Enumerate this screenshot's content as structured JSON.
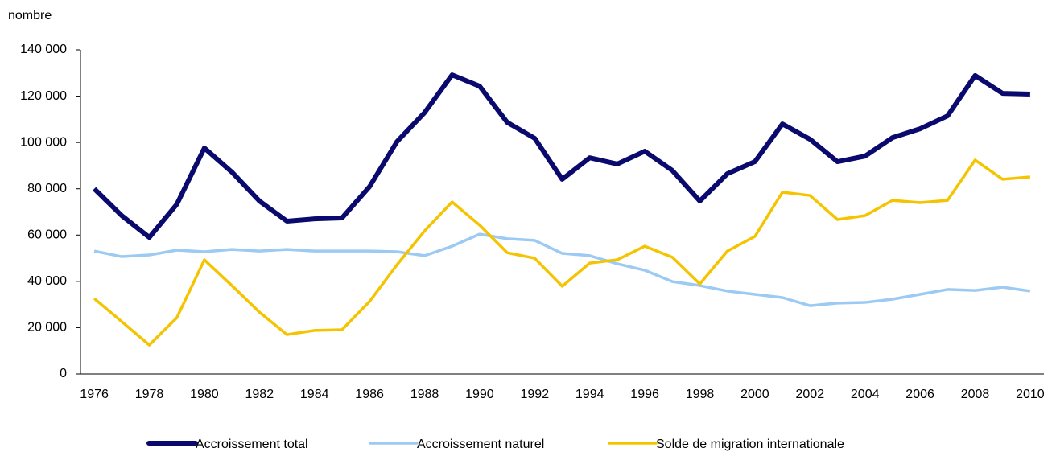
{
  "chart_data": {
    "type": "line",
    "y_label": "nombre",
    "categories": [
      "1976",
      null,
      "1978",
      null,
      "1980",
      null,
      "1982",
      null,
      "1984",
      null,
      "1986",
      null,
      "1988",
      null,
      "1990",
      null,
      "1992",
      null,
      "1994",
      null,
      "1996",
      null,
      "1998",
      null,
      "2000",
      null,
      "2002",
      null,
      "2004",
      null,
      "2006",
      null,
      "2008",
      null,
      "2010"
    ],
    "ylim": [
      0,
      140000
    ],
    "yticks": [
      0,
      {
        "value": 20000,
        "label": "20 000"
      },
      {
        "value": 40000,
        "label": "40 000"
      },
      {
        "value": 60000,
        "label": "60 000"
      },
      {
        "value": 80000,
        "label": "80 000"
      },
      {
        "value": 100000,
        "label": "100 000"
      },
      {
        "value": 120000,
        "label": "120 000"
      },
      {
        "value": 140000,
        "label": "140 000"
      }
    ],
    "series": [
      {
        "name": "Accroissement total",
        "color": "#0a0a6e",
        "width": 6,
        "values": [
          80000,
          68400,
          59000,
          73300,
          97600,
          87200,
          74700,
          66000,
          67000,
          67400,
          80900,
          100400,
          112900,
          129200,
          124300,
          108700,
          101800,
          84100,
          93400,
          90700,
          96200,
          87900,
          74700,
          86500,
          91700,
          108000,
          101400,
          91700,
          94100,
          102100,
          105900,
          111500,
          128900,
          121200,
          120900
        ]
      },
      {
        "name": "Accroissement naturel",
        "color": "#9ccaf2",
        "width": 3.5,
        "values": [
          53100,
          50700,
          51400,
          53500,
          52800,
          53800,
          53100,
          53800,
          53100,
          53100,
          53100,
          52800,
          51100,
          55200,
          60400,
          58400,
          57700,
          52100,
          51100,
          47600,
          44800,
          39900,
          38200,
          35800,
          34400,
          33000,
          29500,
          30600,
          30900,
          32300,
          34400,
          36500,
          36100,
          37500,
          35800
        ]
      },
      {
        "name": "Solde de migration internationale",
        "color": "#f5c400",
        "width": 3.5,
        "values": [
          32600,
          22600,
          12500,
          24300,
          49300,
          38200,
          26700,
          17000,
          18800,
          19100,
          31300,
          47200,
          61800,
          74300,
          64300,
          52400,
          50000,
          37900,
          47900,
          49300,
          55200,
          50400,
          38900,
          53100,
          59400,
          78500,
          77100,
          66700,
          68400,
          75000,
          74000,
          75000,
          92400,
          84100,
          85100
        ]
      }
    ]
  }
}
